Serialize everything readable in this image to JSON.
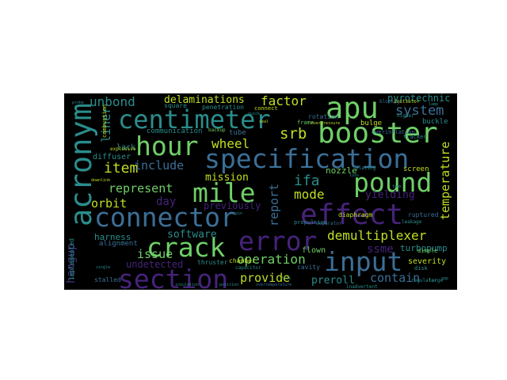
{
  "palette": {
    "background": "#000000",
    "page": "#ffffff",
    "teal": "#2a8d8c",
    "blue": "#3b6f97",
    "green": "#6fcf67",
    "lime": "#c2df23",
    "purple": "#46237a",
    "indigo": "#443983"
  },
  "words": {
    "apu": "apu",
    "centimeter": "centimeter",
    "booster": "booster",
    "hour": "hour",
    "specification": "specification",
    "acronym": "acronym",
    "mile": "mile",
    "pound": "pound",
    "connector": "connector",
    "effect": "effect",
    "error": "error",
    "crack": "crack",
    "input": "input",
    "section": "section",
    "demultiplexer": "demultiplexer",
    "factor": "factor",
    "system": "system",
    "unbond": "unbond",
    "delaminations": "delaminations",
    "pyrotechnic": "pyrotechnic",
    "liner": "liner",
    "srb": "srb",
    "temperature": "temperature",
    "wheel": "wheel",
    "item": "item",
    "include": "include",
    "mission": "mission",
    "represent": "represent",
    "ifa": "ifa",
    "report": "report",
    "mode": "mode",
    "day": "day",
    "orbit": "orbit",
    "previously": "previously",
    "yielding": "yielding",
    "ssme": "ssme",
    "hangup": "hangup",
    "software": "software",
    "harness": "harness",
    "issue": "issue",
    "undetected": "undetected",
    "operation": "operation",
    "provide": "provide",
    "preroll": "preroll",
    "contain": "contain",
    "flown": "flown",
    "screen": "screen",
    "communication": "communication",
    "diffuser": "diffuser",
    "lack": "lack",
    "nozzle": "nozzle",
    "turbopump": "turbopump",
    "severity": "severity",
    "bulge": "bulge",
    "buckle": "buckle",
    "alignment": "alignment",
    "implemented": "implemented",
    "thruster": "thruster",
    "cavity": "cavity",
    "diaphragm": "diaphragm",
    "penetration": "penetration",
    "square": "square",
    "chamber": "chamber",
    "rotation": "rotation",
    "tube": "tube",
    "propulsion": "propulsion",
    "ruptured": "ruptured",
    "disk": "disk",
    "stalled": "stalled",
    "capacitor": "capacitor",
    "explosive": "explosive",
    "backup": "backup",
    "combustion": "combustion",
    "overinflation": "overinflation",
    "tracker": "tracker",
    "dimple": "dimple",
    "separator": "separator",
    "leakage": "leakage",
    "regulator": "regulator",
    "blockage": "blockage",
    "inadvertent": "inadvertent",
    "plating": "plating",
    "frame": "frame",
    "connect": "connect",
    "initiator": "initiator",
    "large": "large",
    "higher": "higher",
    "overpressure": "overpressure",
    "insulation": "insulation",
    "single": "single",
    "downlink": "downlink",
    "loss": "loss",
    "quick": "quick",
    "probe": "probe",
    "tile": "tile",
    "seal": "seal",
    "pin": "pin",
    "overtemperature": "overtemperature",
    "position": "position",
    "tank": "tank",
    "lamp": "lamp",
    "gap": "gap"
  }
}
